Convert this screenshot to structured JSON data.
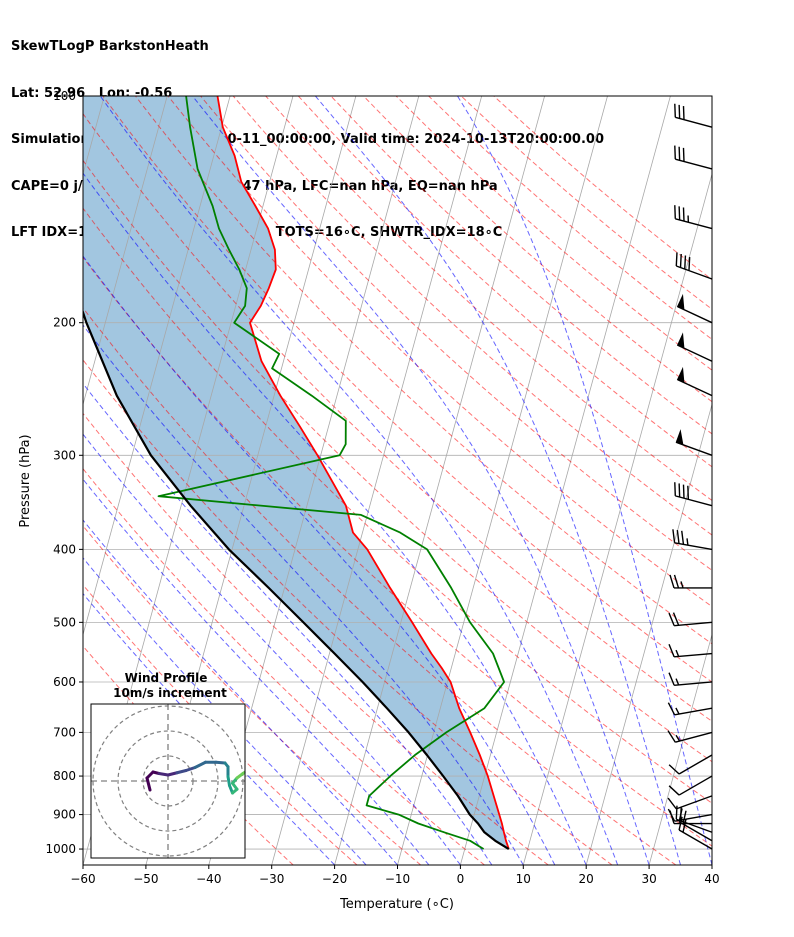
{
  "header": {
    "lines": [
      "SkewTLogP BarkstonHeath",
      "Lat: 52.96   Lon: -0.56",
      "Simulation start time: 2024-10-11_00:00:00, Valid time: 2024-10-13T20:00:00.00",
      "CAPE=0 j/kg, CIN=0 j/kg, LCL=947 hPa, LFC=nan hPa, EQ=nan hPa",
      "LFT IDX=17∘C, K IDX=-17∘C, TOTAL TOTS=16∘C, SHWTR_IDX=18∘C"
    ]
  },
  "chart_data": {
    "type": "line",
    "xlabel": "Temperature (∘C)",
    "ylabel": "Pressure (hPa)",
    "xlim": [
      -60,
      40
    ],
    "ylim": [
      1050,
      100
    ],
    "y_scale": "log",
    "x_ticks": [
      "−60",
      "−50",
      "−40",
      "−30",
      "−20",
      "−10",
      "0",
      "10",
      "20",
      "30",
      "40"
    ],
    "y_ticks": [
      "1000",
      "900",
      "800",
      "700",
      "600",
      "500",
      "400",
      "300",
      "200",
      "100"
    ],
    "grid": true,
    "series": [
      {
        "role": "temperature",
        "color": "#ff0000",
        "points": [
          [
            1000,
            7
          ],
          [
            975,
            6.2
          ],
          [
            950,
            5.5
          ],
          [
            925,
            4.8
          ],
          [
            900,
            4.0
          ],
          [
            850,
            2.3
          ],
          [
            800,
            0.5
          ],
          [
            750,
            -1.7
          ],
          [
            700,
            -4.2
          ],
          [
            650,
            -7.0
          ],
          [
            600,
            -9.5
          ],
          [
            575,
            -11.5
          ],
          [
            550,
            -13.8
          ],
          [
            500,
            -18.2
          ],
          [
            450,
            -23.2
          ],
          [
            400,
            -28.5
          ],
          [
            380,
            -31.5
          ],
          [
            350,
            -33.8
          ],
          [
            300,
            -40.5
          ],
          [
            275,
            -44.5
          ],
          [
            250,
            -49.0
          ],
          [
            225,
            -53.5
          ],
          [
            200,
            -57.0
          ],
          [
            190,
            -56.0
          ],
          [
            180,
            -55.5
          ],
          [
            170,
            -55.2
          ],
          [
            160,
            -56.2
          ],
          [
            150,
            -58.2
          ],
          [
            140,
            -61.2
          ],
          [
            130,
            -64.5
          ],
          [
            120,
            -66.7
          ],
          [
            110,
            -69.8
          ],
          [
            100,
            -72.0
          ]
        ]
      },
      {
        "role": "dewpoint",
        "color": "#008000",
        "points": [
          [
            1000,
            3.0
          ],
          [
            975,
            0.5
          ],
          [
            950,
            -4.0
          ],
          [
            925,
            -8.5
          ],
          [
            900,
            -12.0
          ],
          [
            875,
            -17.5
          ],
          [
            850,
            -17.5
          ],
          [
            800,
            -15.0
          ],
          [
            750,
            -12.0
          ],
          [
            700,
            -8.0
          ],
          [
            650,
            -3.0
          ],
          [
            600,
            -1.0
          ],
          [
            550,
            -4.0
          ],
          [
            500,
            -9.0
          ],
          [
            450,
            -13.5
          ],
          [
            400,
            -19.0
          ],
          [
            380,
            -24.0
          ],
          [
            360,
            -31.0
          ],
          [
            340,
            -64.0
          ],
          [
            300,
            -37.0
          ],
          [
            290,
            -36.5
          ],
          [
            270,
            -37.5
          ],
          [
            250,
            -44.0
          ],
          [
            230,
            -51.5
          ],
          [
            220,
            -51.0
          ],
          [
            200,
            -59.5
          ],
          [
            190,
            -58.5
          ],
          [
            180,
            -59.0
          ],
          [
            170,
            -61.0
          ],
          [
            160,
            -63.5
          ],
          [
            150,
            -66.0
          ],
          [
            140,
            -68.0
          ],
          [
            125,
            -72.0
          ],
          [
            110,
            -75.0
          ],
          [
            100,
            -77.0
          ]
        ]
      },
      {
        "role": "parcel",
        "color": "#000000",
        "points": [
          [
            1000,
            7
          ],
          [
            975,
            4.5
          ],
          [
            950,
            2.4
          ],
          [
            925,
            1.0
          ],
          [
            900,
            -0.7
          ],
          [
            850,
            -3.4
          ],
          [
            800,
            -6.6
          ],
          [
            750,
            -10.1
          ],
          [
            700,
            -14.0
          ],
          [
            650,
            -18.5
          ],
          [
            600,
            -23.5
          ],
          [
            550,
            -29.2
          ],
          [
            500,
            -35.5
          ],
          [
            450,
            -42.5
          ],
          [
            400,
            -50.5
          ],
          [
            350,
            -58.5
          ],
          [
            300,
            -67.0
          ],
          [
            250,
            -75.0
          ],
          [
            200,
            -83.0
          ],
          [
            150,
            -92.0
          ],
          [
            100,
            -103.5
          ]
        ]
      }
    ],
    "shading": {
      "between": [
        "parcel",
        "temperature"
      ],
      "color": "#a2c6e0"
    },
    "reference_lines": {
      "dry_adiabats_color": "#ff0000",
      "moist_adiabats_color": "#0000ff",
      "mixing_ratio_color": "#808080",
      "isotherms_skewed_color": "#a0a0a0"
    },
    "wind_barbs": [
      {
        "p": 1000,
        "speed_kt": 20,
        "dir": 300
      },
      {
        "p": 975,
        "speed_kt": 20,
        "dir": 300
      },
      {
        "p": 950,
        "speed_kt": 20,
        "dir": 290
      },
      {
        "p": 925,
        "speed_kt": 10,
        "dir": 270
      },
      {
        "p": 900,
        "speed_kt": 10,
        "dir": 260
      },
      {
        "p": 850,
        "speed_kt": 10,
        "dir": 250
      },
      {
        "p": 800,
        "speed_kt": 10,
        "dir": 240
      },
      {
        "p": 750,
        "speed_kt": 10,
        "dir": 240
      },
      {
        "p": 700,
        "speed_kt": 15,
        "dir": 255
      },
      {
        "p": 650,
        "speed_kt": 15,
        "dir": 260
      },
      {
        "p": 600,
        "speed_kt": 15,
        "dir": 265
      },
      {
        "p": 550,
        "speed_kt": 15,
        "dir": 265
      },
      {
        "p": 500,
        "speed_kt": 20,
        "dir": 265
      },
      {
        "p": 450,
        "speed_kt": 25,
        "dir": 270
      },
      {
        "p": 400,
        "speed_kt": 35,
        "dir": 280
      },
      {
        "p": 350,
        "speed_kt": 40,
        "dir": 285
      },
      {
        "p": 300,
        "speed_kt": 50,
        "dir": 290
      },
      {
        "p": 250,
        "speed_kt": 50,
        "dir": 295
      },
      {
        "p": 225,
        "speed_kt": 50,
        "dir": 295
      },
      {
        "p": 200,
        "speed_kt": 50,
        "dir": 295
      },
      {
        "p": 175,
        "speed_kt": 40,
        "dir": 290
      },
      {
        "p": 150,
        "speed_kt": 35,
        "dir": 285
      },
      {
        "p": 125,
        "speed_kt": 30,
        "dir": 285
      },
      {
        "p": 110,
        "speed_kt": 30,
        "dir": 285
      }
    ],
    "inset": {
      "title": "Wind Profile",
      "subtitle": "10m/s increment",
      "rings": 3,
      "hodograph": [
        [
          -1.2,
          -0.6
        ],
        [
          -1.4,
          0.2
        ],
        [
          -1.0,
          0.6
        ],
        [
          -0.6,
          0.5
        ],
        [
          0.0,
          0.4
        ],
        [
          0.6,
          0.55
        ],
        [
          1.2,
          0.7
        ],
        [
          1.8,
          0.9
        ],
        [
          2.5,
          1.25
        ],
        [
          3.2,
          1.25
        ],
        [
          3.8,
          1.2
        ],
        [
          4.0,
          0.95
        ],
        [
          4.0,
          0.3
        ],
        [
          4.1,
          -0.3
        ],
        [
          4.3,
          -0.8
        ],
        [
          4.6,
          -0.55
        ],
        [
          4.3,
          -0.15
        ],
        [
          4.6,
          0.2
        ],
        [
          5.0,
          0.5
        ],
        [
          5.3,
          0.7
        ],
        [
          5.6,
          1.1
        ],
        [
          5.8,
          1.3
        ],
        [
          6.2,
          1.6
        ],
        [
          6.5,
          1.9
        ]
      ]
    }
  }
}
